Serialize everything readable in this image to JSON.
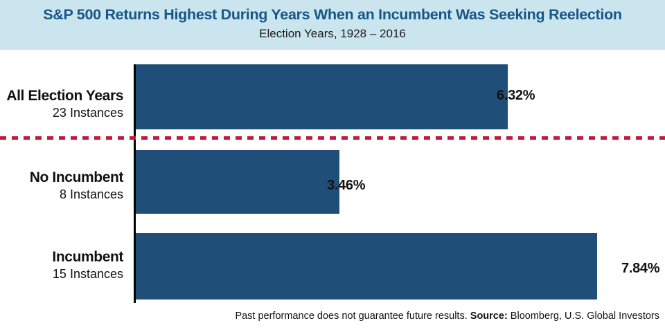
{
  "chart_data": {
    "type": "bar",
    "orientation": "horizontal",
    "title": "S&P 500 Returns Highest During Years When an Incumbent Was Seeking Reelection",
    "subtitle": "Election Years, 1928 – 2016",
    "categories": [
      "All Election Years",
      "No Incumbent",
      "Incumbent"
    ],
    "category_sublabels": [
      "23 Instances",
      "8 Instances",
      "15 Instances"
    ],
    "values": [
      6.32,
      3.46,
      7.84
    ],
    "value_labels": [
      "6.32%",
      "3.46%",
      "7.84%"
    ],
    "unit": "%",
    "xlim": [
      0,
      8.5
    ],
    "grid": false,
    "legend": false,
    "bar_color": "#1F4E79",
    "separator": {
      "after_category": "All Election Years",
      "style": "dashed",
      "color": "#C11A3B"
    }
  },
  "colors": {
    "header_background": "#CBE5EF",
    "title_text": "#175687",
    "bar": "#1F4E79",
    "separator": "#C11A3B",
    "axis": "#000000",
    "body_text": "#111111"
  },
  "footer": {
    "disclaimer": "Past performance does not guarantee future results. ",
    "source_label": "Source:",
    "source_value": " Bloomberg, U.S. Global Investors"
  }
}
